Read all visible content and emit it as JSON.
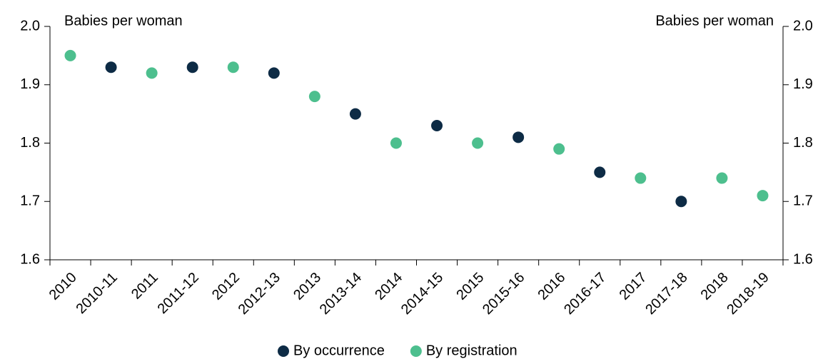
{
  "chart_data": {
    "type": "scatter",
    "y_label": "Babies per woman",
    "y2_label": "Babies per woman",
    "categories": [
      "2010",
      "2010-11",
      "2011",
      "2011-12",
      "2012",
      "2012-13",
      "2013",
      "2013-14",
      "2014",
      "2014-15",
      "2015",
      "2015-16",
      "2016",
      "2016-17",
      "2017",
      "2017-18",
      "2018",
      "2018-19"
    ],
    "series": [
      {
        "name": "By occurrence",
        "color": "#0d2b45",
        "values": [
          null,
          1.93,
          null,
          1.93,
          null,
          1.92,
          null,
          1.85,
          null,
          1.83,
          null,
          1.81,
          null,
          1.75,
          null,
          1.7,
          null,
          null
        ]
      },
      {
        "name": "By registration",
        "color": "#4dbf8e",
        "values": [
          1.95,
          null,
          1.92,
          null,
          1.93,
          null,
          1.88,
          null,
          1.8,
          null,
          1.8,
          null,
          1.79,
          null,
          1.74,
          null,
          1.74,
          1.71
        ]
      }
    ],
    "ylim": [
      1.6,
      2.0
    ],
    "yticks": [
      1.6,
      1.7,
      1.8,
      1.9,
      {
        "value": 2.0,
        "label": "2.0"
      }
    ],
    "y2lim": [
      1.6,
      2.0
    ],
    "y2ticks": [
      1.6,
      1.7,
      1.8,
      1.9,
      {
        "value": 2.0,
        "label": "2.0"
      }
    ],
    "legend": "bottom",
    "grid": false
  }
}
